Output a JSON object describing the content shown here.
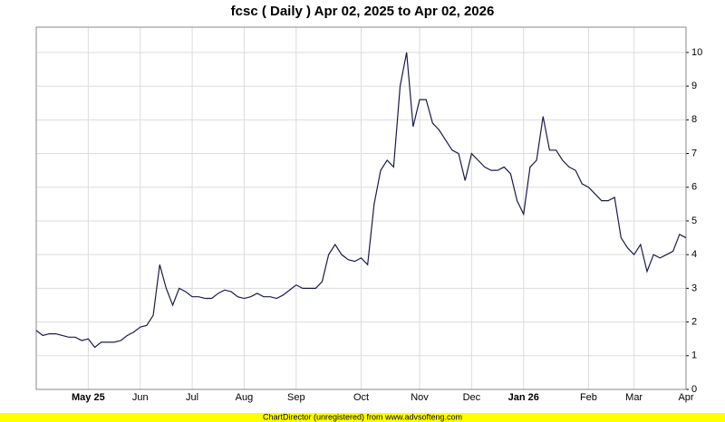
{
  "chart_data": {
    "type": "line",
    "title": "fcsc ( Daily ) Apr 02, 2025 to Apr 02, 2026",
    "footer": "ChartDirector (unregistered) from www.advsofteng.com",
    "categories": [
      null,
      null,
      null,
      null,
      null,
      null,
      null,
      null,
      "May 25",
      null,
      null,
      null,
      null,
      null,
      null,
      null,
      "Jun",
      null,
      null,
      null,
      null,
      null,
      null,
      null,
      "Jul",
      null,
      null,
      null,
      null,
      null,
      null,
      null,
      "Aug",
      null,
      null,
      null,
      null,
      null,
      null,
      null,
      "Sep",
      null,
      null,
      null,
      null,
      null,
      null,
      null,
      null,
      null,
      "Oct",
      null,
      null,
      null,
      null,
      null,
      null,
      null,
      null,
      "Nov",
      null,
      null,
      null,
      null,
      null,
      null,
      null,
      "Dec",
      null,
      null,
      null,
      null,
      null,
      null,
      null,
      "Jan 26",
      null,
      null,
      null,
      null,
      null,
      null,
      null,
      null,
      null,
      "Feb",
      null,
      null,
      null,
      null,
      null,
      null,
      "Mar",
      null,
      null,
      null,
      null,
      null,
      null,
      null,
      "Apr"
    ],
    "values": [
      1.75,
      1.6,
      1.65,
      1.65,
      1.6,
      1.55,
      1.55,
      1.45,
      1.5,
      1.25,
      1.4,
      1.4,
      1.4,
      1.45,
      1.6,
      1.7,
      1.85,
      1.9,
      2.2,
      3.7,
      3.0,
      2.5,
      3.0,
      2.9,
      2.75,
      2.75,
      2.7,
      2.7,
      2.85,
      2.95,
      2.9,
      2.75,
      2.7,
      2.75,
      2.85,
      2.75,
      2.75,
      2.7,
      2.8,
      2.95,
      3.1,
      3.0,
      3.0,
      3.0,
      3.2,
      4.0,
      4.3,
      4.0,
      3.85,
      3.8,
      3.9,
      3.7,
      5.5,
      6.5,
      6.8,
      6.6,
      9.0,
      10.0,
      7.8,
      8.6,
      8.6,
      7.9,
      7.7,
      7.4,
      7.1,
      7.0,
      6.2,
      7.0,
      6.8,
      6.6,
      6.5,
      6.5,
      6.6,
      6.4,
      5.6,
      5.2,
      6.6,
      6.8,
      8.1,
      7.1,
      7.1,
      6.8,
      6.6,
      6.5,
      6.1,
      6.0,
      5.8,
      5.6,
      5.6,
      5.7,
      4.5,
      4.2,
      4.0,
      4.3,
      3.5,
      4.0,
      3.9,
      4.0,
      4.1,
      4.6,
      4.5
    ],
    "color": "#1a1a4e",
    "ylim": [
      0,
      10.75
    ],
    "yticks": [
      0,
      1,
      2,
      3,
      4,
      5,
      6,
      7,
      8,
      9,
      10
    ],
    "grid": true
  }
}
